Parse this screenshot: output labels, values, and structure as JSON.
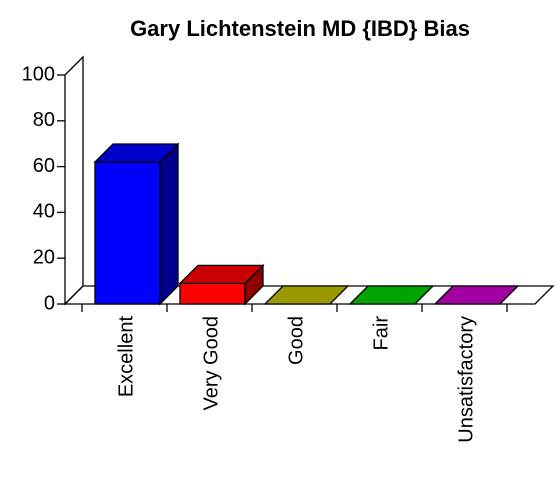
{
  "chart_data": {
    "type": "bar3d",
    "title": "Gary Lichtenstein MD {IBD} Bias",
    "categories": [
      "Excellent",
      "Very Good",
      "Good",
      "Fair",
      "Unsatisfactory"
    ],
    "values": [
      62,
      9,
      0,
      0,
      0
    ],
    "colors": [
      "#0000ff",
      "#ff0000",
      "#c0c000",
      "#00cc00",
      "#cc00cc"
    ],
    "ylim": [
      0,
      100
    ],
    "yticks": [
      0,
      20,
      40,
      60,
      80,
      100
    ]
  }
}
